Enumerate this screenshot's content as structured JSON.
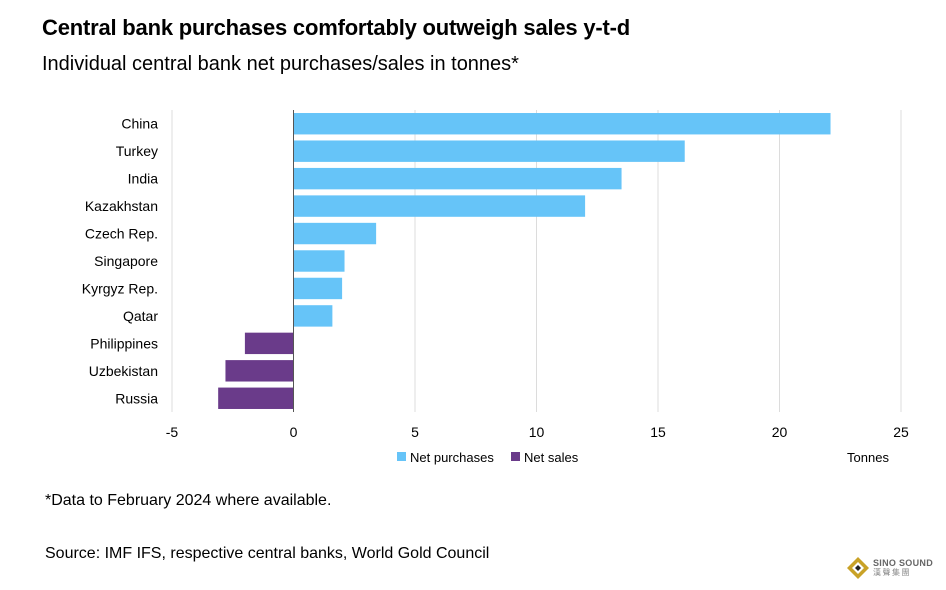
{
  "title": "Central bank purchases comfortably outweigh sales y-t-d",
  "subtitle": "Individual central bank net purchases/sales in tonnes*",
  "footnote": "*Data to February 2024 where available.",
  "source": "Source: IMF IFS, respective central banks, World Gold Council",
  "logo": {
    "name": "SINO SOUND",
    "cn": "漢聲集團"
  },
  "colors": {
    "purchases": "#66c4f8",
    "sales": "#6a3b8a",
    "grid": "#dcdcdc",
    "axis": "#555555"
  },
  "chart_data": {
    "type": "bar",
    "orientation": "horizontal",
    "categories": [
      "China",
      "Turkey",
      "India",
      "Kazakhstan",
      "Czech Rep.",
      "Singapore",
      "Kyrgyz Rep.",
      "Qatar",
      "Philippines",
      "Uzbekistan",
      "Russia"
    ],
    "values": [
      22.1,
      16.1,
      13.5,
      12.0,
      3.4,
      2.1,
      2.0,
      1.6,
      -2.0,
      -2.8,
      -3.1
    ],
    "series": [
      {
        "name": "Net purchases",
        "sign": "positive"
      },
      {
        "name": "Net sales",
        "sign": "negative"
      }
    ],
    "xlim": [
      -5,
      25
    ],
    "xticks": [
      -5,
      0,
      5,
      10,
      15,
      20,
      25
    ],
    "xlabel": "Tonnes",
    "ylabel": "",
    "grid": true,
    "legend": "bottom-center"
  }
}
